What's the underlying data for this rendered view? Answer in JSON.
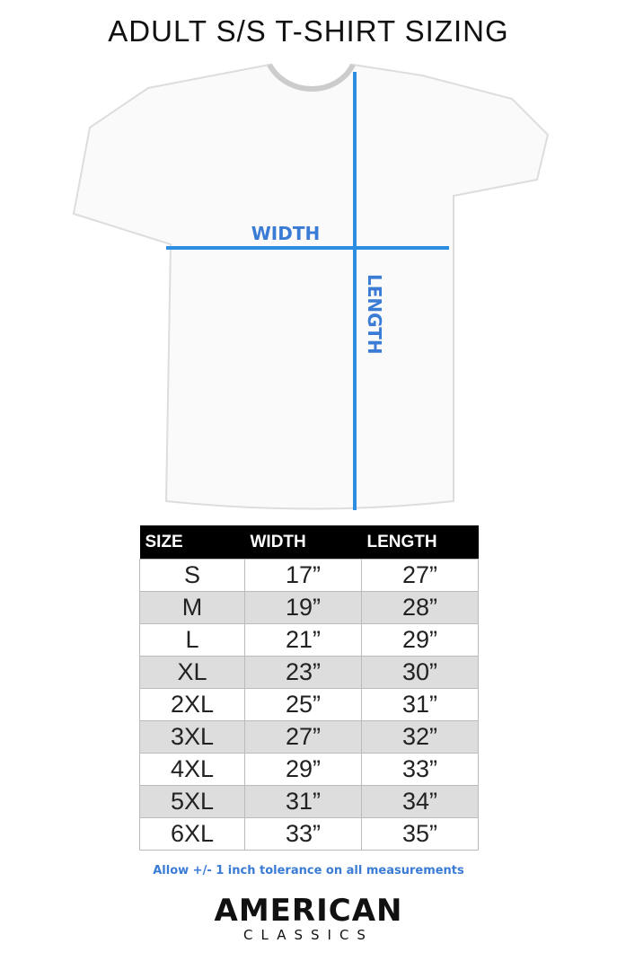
{
  "title": "ADULT S/S T-SHIRT SIZING",
  "diagram": {
    "width_label": "WIDTH",
    "length_label": "LENGTH"
  },
  "table": {
    "header": [
      "SIZE",
      "WIDTH",
      "LENGTH"
    ],
    "rows": [
      [
        "S",
        "17”",
        "27”"
      ],
      [
        "M",
        "19”",
        "28”"
      ],
      [
        "L",
        "21”",
        "29”"
      ],
      [
        "XL",
        "23”",
        "30”"
      ],
      [
        "2XL",
        "25”",
        "31”"
      ],
      [
        "3XL",
        "27”",
        "32”"
      ],
      [
        "4XL",
        "29”",
        "33”"
      ],
      [
        "5XL",
        "31”",
        "34”"
      ],
      [
        "6XL",
        "33”",
        "35”"
      ]
    ]
  },
  "note": "Allow +/- 1 inch tolerance on all measurements",
  "brand": {
    "name": "AMERICAN",
    "sub": "CLASSICS"
  }
}
